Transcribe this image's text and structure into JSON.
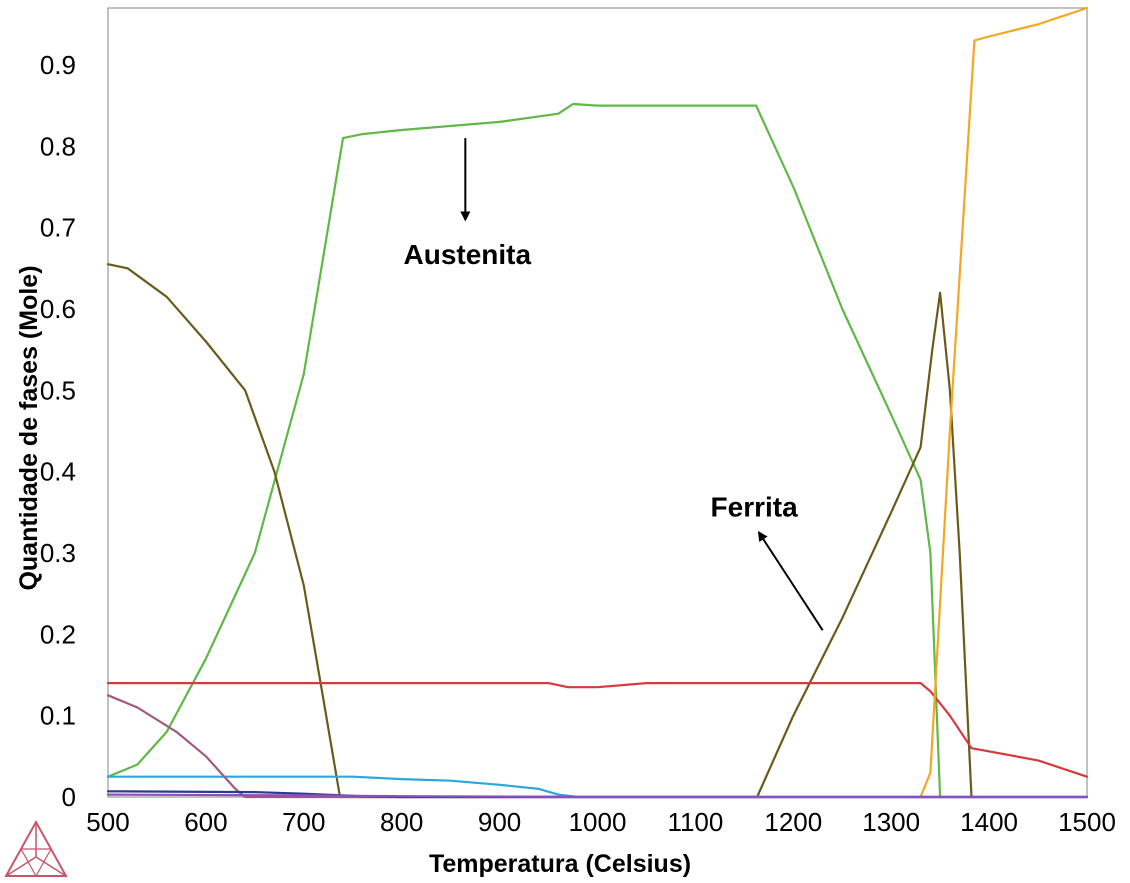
{
  "chart_data": {
    "type": "line",
    "title": "",
    "xlabel": "Temperatura (Celsius)",
    "ylabel": "Quantidade de fases (Mole)",
    "xlim": [
      500,
      1500
    ],
    "ylim": [
      0,
      0.97
    ],
    "x_ticks": [
      "500",
      "600",
      "700",
      "800",
      "900",
      "1000",
      "1100",
      "1200",
      "1300",
      "1400",
      "1500"
    ],
    "y_ticks": [
      "0",
      "0.1",
      "0.2",
      "0.3",
      "0.4",
      "0.5",
      "0.6",
      "0.7",
      "0.8",
      "0.9"
    ],
    "grid": false,
    "legend": "none",
    "annotations": [
      {
        "text": "Austenita",
        "x": 867,
        "y": 0.655,
        "arrow_from": [
          865,
          0.81
        ],
        "arrow_to": [
          865,
          0.71
        ]
      },
      {
        "text": "Ferrita",
        "x": 1160,
        "y": 0.345,
        "arrow_from": [
          1230,
          0.205
        ],
        "arrow_to": [
          1165,
          0.325
        ]
      }
    ],
    "series": [
      {
        "color": "#5fb847",
        "points": [
          [
            500,
            0.025
          ],
          [
            530,
            0.04
          ],
          [
            560,
            0.08
          ],
          [
            600,
            0.17
          ],
          [
            650,
            0.3
          ],
          [
            700,
            0.52
          ],
          [
            740,
            0.81
          ],
          [
            760,
            0.815
          ],
          [
            800,
            0.82
          ],
          [
            900,
            0.83
          ],
          [
            960,
            0.84
          ],
          [
            975,
            0.852
          ],
          [
            1000,
            0.85
          ],
          [
            1100,
            0.85
          ],
          [
            1162,
            0.85
          ],
          [
            1200,
            0.75
          ],
          [
            1250,
            0.6
          ],
          [
            1300,
            0.47
          ],
          [
            1330,
            0.39
          ],
          [
            1340,
            0.3
          ],
          [
            1350,
            0
          ]
        ]
      },
      {
        "color": "#6b5a1a",
        "points": [
          [
            500,
            0.655
          ],
          [
            520,
            0.65
          ],
          [
            560,
            0.615
          ],
          [
            600,
            0.56
          ],
          [
            640,
            0.5
          ],
          [
            670,
            0.4
          ],
          [
            700,
            0.26
          ],
          [
            720,
            0.12
          ],
          [
            737,
            0
          ],
          [
            1163,
            0
          ],
          [
            1200,
            0.1
          ],
          [
            1250,
            0.22
          ],
          [
            1300,
            0.35
          ],
          [
            1330,
            0.43
          ],
          [
            1342,
            0.55
          ],
          [
            1350,
            0.62
          ],
          [
            1360,
            0.5
          ],
          [
            1370,
            0.3
          ],
          [
            1382,
            0
          ]
        ]
      },
      {
        "color": "#d73a3a",
        "points": [
          [
            500,
            0.14
          ],
          [
            950,
            0.14
          ],
          [
            970,
            0.135
          ],
          [
            1000,
            0.135
          ],
          [
            1050,
            0.14
          ],
          [
            1330,
            0.14
          ],
          [
            1340,
            0.13
          ],
          [
            1360,
            0.1
          ],
          [
            1382,
            0.06
          ],
          [
            1450,
            0.045
          ],
          [
            1500,
            0.025
          ]
        ]
      },
      {
        "color": "#f5a623",
        "points": [
          [
            1330,
            0
          ],
          [
            1340,
            0.03
          ],
          [
            1360,
            0.45
          ],
          [
            1385,
            0.93
          ],
          [
            1400,
            0.935
          ],
          [
            1450,
            0.95
          ],
          [
            1500,
            0.97
          ]
        ]
      },
      {
        "color": "#2ba7df",
        "points": [
          [
            500,
            0.025
          ],
          [
            750,
            0.025
          ],
          [
            800,
            0.022
          ],
          [
            850,
            0.02
          ],
          [
            900,
            0.015
          ],
          [
            940,
            0.01
          ],
          [
            960,
            0.003
          ],
          [
            980,
            0
          ],
          [
            1500,
            0
          ]
        ]
      },
      {
        "color": "#a25a7a",
        "points": [
          [
            500,
            0.125
          ],
          [
            530,
            0.11
          ],
          [
            570,
            0.08
          ],
          [
            600,
            0.05
          ],
          [
            630,
            0.01
          ],
          [
            640,
            0
          ],
          [
            1500,
            0
          ]
        ]
      },
      {
        "color": "#2e3a8c",
        "points": [
          [
            500,
            0.007
          ],
          [
            650,
            0.006
          ],
          [
            700,
            0.004
          ],
          [
            760,
            0.001
          ],
          [
            800,
            0
          ],
          [
            1500,
            0
          ]
        ]
      },
      {
        "color": "#8a4fc0",
        "points": [
          [
            500,
            0.003
          ],
          [
            700,
            0.002
          ],
          [
            800,
            0.001
          ],
          [
            1000,
            0
          ],
          [
            1500,
            0
          ]
        ]
      }
    ]
  }
}
